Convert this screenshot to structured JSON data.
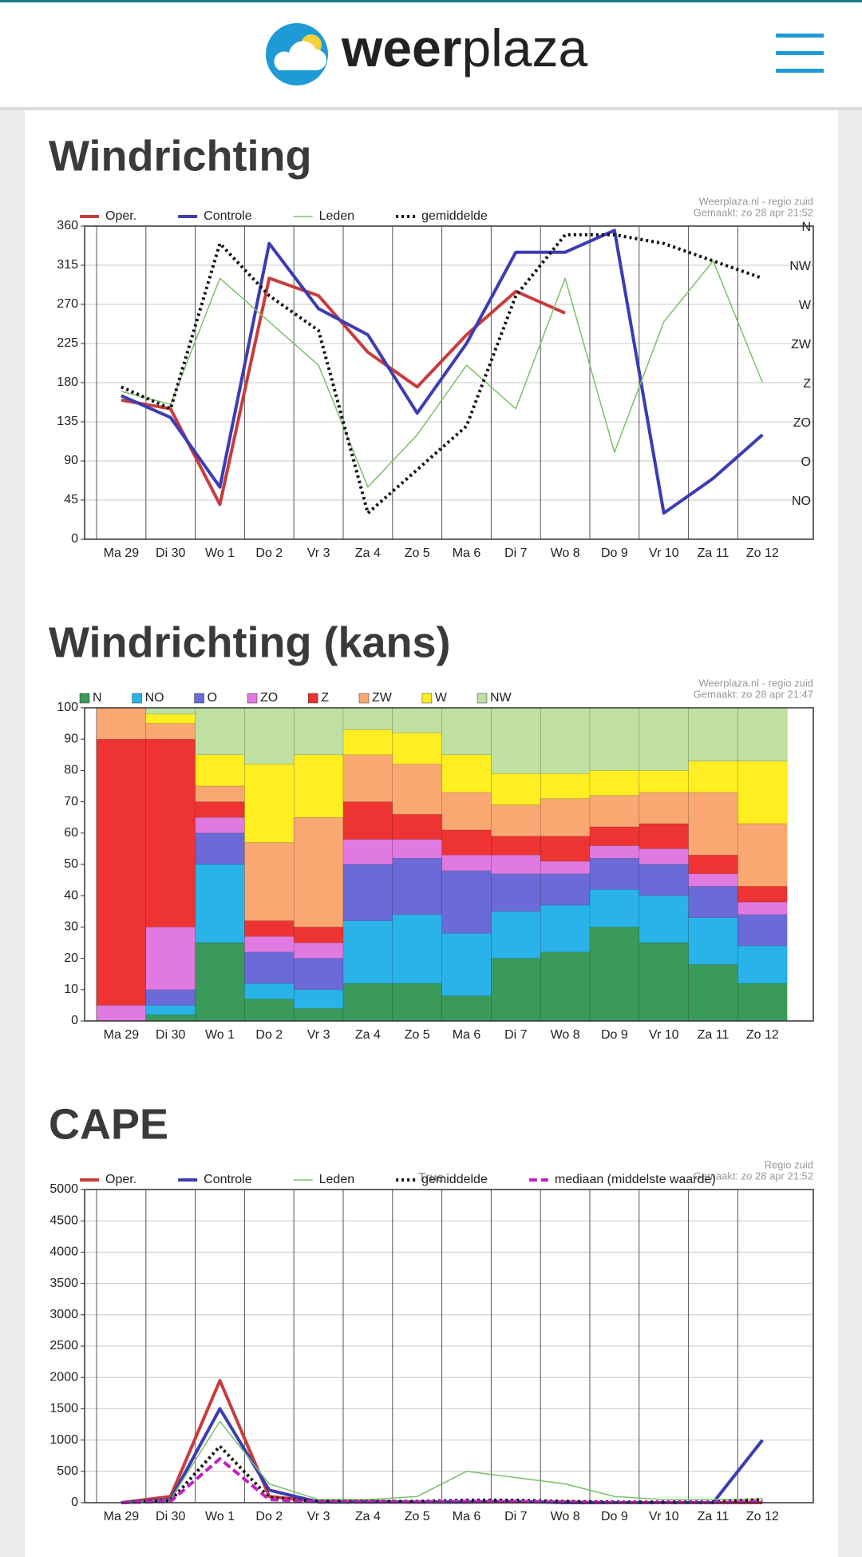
{
  "header": {
    "brand_bold": "weer",
    "brand_light": "plaza"
  },
  "chart_data": [
    {
      "type": "line",
      "title": "Windrichting",
      "watermark": [
        "Weerplaza.nl - regio zuid",
        "Gemaakt: zo 28 apr 21:52"
      ],
      "categories": [
        "Ma 29",
        "Di 30",
        "Wo 1",
        "Do 2",
        "Vr 3",
        "Za 4",
        "Zo 5",
        "Ma 6",
        "Di 7",
        "Wo 8",
        "Do 9",
        "Vr 10",
        "Za 11",
        "Zo 12"
      ],
      "ylim": [
        0,
        360
      ],
      "yticks": [
        0,
        45,
        90,
        135,
        180,
        225,
        270,
        315,
        360
      ],
      "y2lim": [
        0,
        360
      ],
      "y2ticks": [
        {
          "value": 45,
          "label": "NO"
        },
        {
          "value": 90,
          "label": "O"
        },
        {
          "value": 135,
          "label": "ZO"
        },
        {
          "value": 180,
          "label": "Z"
        },
        {
          "value": 225,
          "label": "ZW"
        },
        {
          "value": 270,
          "label": "W"
        },
        {
          "value": 315,
          "label": "NW"
        },
        {
          "value": 360,
          "label": "N"
        }
      ],
      "grid": true,
      "series": [
        {
          "name": "Oper.",
          "color": "#c83c3c",
          "values": [
            160,
            150,
            40,
            300,
            280,
            215,
            175,
            235,
            285,
            260,
            null,
            null,
            null,
            null
          ]
        },
        {
          "name": "Controle",
          "color": "#3c3cb4",
          "values": [
            165,
            140,
            60,
            340,
            265,
            235,
            145,
            225,
            330,
            330,
            355,
            30,
            70,
            120
          ]
        },
        {
          "name": "Leden",
          "color": "#7cc06a",
          "values": [
            170,
            155,
            300,
            250,
            200,
            60,
            120,
            200,
            150,
            300,
            100,
            250,
            320,
            180
          ]
        },
        {
          "name": "gemiddelde",
          "color": "#111111",
          "dash": "dotted",
          "values": [
            175,
            150,
            340,
            280,
            240,
            30,
            80,
            130,
            280,
            350,
            350,
            340,
            320,
            300
          ]
        }
      ]
    },
    {
      "type": "bar",
      "title": "Windrichting (kans)",
      "watermark": [
        "Weerplaza.nl - regio zuid",
        "Gemaakt: zo 28 apr 21:47"
      ],
      "categories": [
        "Ma 29",
        "Di 30",
        "Wo 1",
        "Do 2",
        "Vr 3",
        "Za 4",
        "Zo 5",
        "Ma 6",
        "Di 7",
        "Wo 8",
        "Do 9",
        "Vr 10",
        "Za 11",
        "Zo 12"
      ],
      "ylim": [
        0,
        100
      ],
      "yticks": [
        0,
        10,
        20,
        30,
        40,
        50,
        60,
        70,
        80,
        90,
        100
      ],
      "grid": false,
      "stacked": true,
      "series": [
        {
          "name": "N",
          "color": "#3a9a5a",
          "values": [
            0,
            2,
            25,
            7,
            4,
            12,
            12,
            8,
            20,
            22,
            30,
            25,
            18,
            12
          ]
        },
        {
          "name": "NO",
          "color": "#29b3e8",
          "values": [
            0,
            3,
            25,
            5,
            6,
            20,
            22,
            20,
            15,
            15,
            12,
            15,
            15,
            12
          ]
        },
        {
          "name": "O",
          "color": "#6a6ad8",
          "values": [
            0,
            5,
            10,
            10,
            10,
            18,
            18,
            20,
            12,
            10,
            10,
            10,
            10,
            10
          ]
        },
        {
          "name": "ZO",
          "color": "#e07ae0",
          "values": [
            5,
            20,
            5,
            5,
            5,
            8,
            6,
            5,
            6,
            4,
            4,
            5,
            4,
            4
          ]
        },
        {
          "name": "Z",
          "color": "#ee3333",
          "values": [
            85,
            60,
            5,
            5,
            5,
            12,
            8,
            8,
            6,
            8,
            6,
            8,
            6,
            5
          ]
        },
        {
          "name": "ZW",
          "color": "#f8a870",
          "values": [
            10,
            5,
            5,
            25,
            35,
            15,
            16,
            12,
            10,
            12,
            10,
            10,
            20,
            20
          ]
        },
        {
          "name": "W",
          "color": "#ffee22",
          "values": [
            0,
            3,
            10,
            25,
            20,
            8,
            10,
            12,
            10,
            8,
            8,
            7,
            10,
            20
          ]
        },
        {
          "name": "NW",
          "color": "#bfe0a0",
          "values": [
            0,
            2,
            15,
            18,
            15,
            7,
            8,
            15,
            21,
            21,
            20,
            20,
            17,
            17
          ]
        }
      ]
    },
    {
      "type": "line",
      "title": "CAPE",
      "watermark": [
        "Regio zuid",
        "Gemaakt: zo 28 apr 21:52"
      ],
      "annotation": "True",
      "categories": [
        "Ma 29",
        "Di 30",
        "Wo 1",
        "Do 2",
        "Vr 3",
        "Za 4",
        "Zo 5",
        "Ma 6",
        "Di 7",
        "Wo 8",
        "Do 9",
        "Vr 10",
        "Za 11",
        "Zo 12"
      ],
      "ylim": [
        0,
        5000
      ],
      "yticks": [
        0,
        500,
        1000,
        1500,
        2000,
        2500,
        3000,
        3500,
        4000,
        4500,
        5000
      ],
      "grid": true,
      "series": [
        {
          "name": "Oper.",
          "color": "#c83c3c",
          "values": [
            0,
            100,
            1950,
            100,
            20,
            20,
            10,
            10,
            10,
            10,
            0,
            0,
            0,
            0
          ]
        },
        {
          "name": "Controle",
          "color": "#3c3cb4",
          "values": [
            0,
            50,
            1500,
            200,
            10,
            10,
            10,
            10,
            20,
            0,
            0,
            0,
            0,
            1000
          ]
        },
        {
          "name": "Leden",
          "color": "#7cc06a",
          "values": [
            0,
            50,
            1300,
            300,
            50,
            50,
            100,
            500,
            400,
            300,
            100,
            50,
            50,
            60
          ]
        },
        {
          "name": "gemiddelde",
          "color": "#111111",
          "dash": "dotted",
          "values": [
            0,
            30,
            900,
            80,
            20,
            20,
            20,
            40,
            40,
            20,
            10,
            10,
            10,
            50
          ]
        },
        {
          "name": "mediaan (middelste waarde)",
          "color": "#c020c0",
          "dash": "dashed",
          "values": [
            0,
            20,
            700,
            50,
            10,
            10,
            10,
            20,
            20,
            10,
            0,
            0,
            0,
            20
          ]
        }
      ]
    }
  ]
}
